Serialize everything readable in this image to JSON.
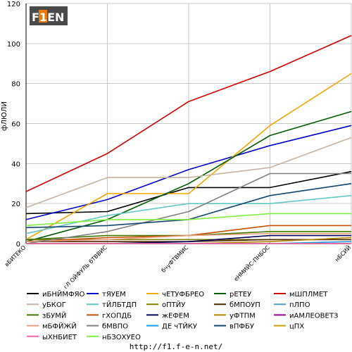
{
  "logo": {
    "text": "F1EN"
  },
  "footer": {
    "url": "http://f1.f-e-n.net/"
  },
  "chart_data": {
    "type": "line",
    "ylabel": "фЛЮЛИ",
    "xlabel": "",
    "ylim": [
      0,
      120
    ],
    "yticks": [
      0,
      20,
      40,
      60,
      80,
      100,
      120
    ],
    "grid": true,
    "legend_position": "bottom",
    "categories": [
      "вБИТЕКО",
      "гЛ ОЙФУЛЬ бТВВИС",
      "бчуФТВМИС",
      "еНМИЙС-ПНБОС",
      "нБСИЙ"
    ],
    "series": [
      {
        "name": "иБНЙМФЯО",
        "color": "#000000",
        "values": [
          15,
          16,
          28,
          28,
          36
        ]
      },
      {
        "name": "тЯУЕМ",
        "color": "#0000c8",
        "values": [
          12,
          22,
          37,
          49,
          59
        ]
      },
      {
        "name": "чЕТУФБРЕО",
        "color": "#f5a500",
        "values": [
          2,
          25,
          25,
          59,
          85
        ]
      },
      {
        "name": "рЕТЕУ",
        "color": "#005a00",
        "values": [
          1,
          12,
          30,
          54,
          66
        ]
      },
      {
        "name": "мШПЛМЕТ",
        "color": "#d20000",
        "values": [
          26,
          45,
          71,
          86,
          104
        ]
      },
      {
        "name": "уБКОГ",
        "color": "#c8b4a0",
        "values": [
          18,
          33,
          33,
          38,
          53
        ]
      },
      {
        "name": "тЙЛБТДП",
        "color": "#64c8c8",
        "values": [
          5,
          14,
          20,
          20,
          24
        ]
      },
      {
        "name": "оПТЙУ",
        "color": "#808000",
        "values": [
          2,
          2,
          2,
          2,
          2
        ]
      },
      {
        "name": "бМПОУП",
        "color": "#502800",
        "values": [
          1,
          1,
          1,
          2,
          2
        ]
      },
      {
        "name": "пЛПО",
        "color": "#50a0c8",
        "values": [
          0,
          0,
          0,
          0,
          0
        ]
      },
      {
        "name": "зБУМЙ",
        "color": "#467800",
        "values": [
          2,
          4,
          4,
          6,
          6
        ]
      },
      {
        "name": "гХОПДБ",
        "color": "#c85000",
        "values": [
          1,
          3,
          4,
          9,
          9
        ]
      },
      {
        "name": "жЕФЕМ",
        "color": "#00005a",
        "values": [
          0,
          0,
          1,
          4,
          4
        ]
      },
      {
        "name": "уФТПМ",
        "color": "#b48200",
        "values": [
          0,
          0,
          0,
          1,
          3
        ]
      },
      {
        "name": "иАМЛЕОВЕТЗ",
        "color": "#960096",
        "values": [
          0,
          0,
          0,
          0,
          0
        ]
      },
      {
        "name": "мБФЙЖЙ",
        "color": "#e6a082",
        "values": [
          1,
          2,
          4,
          5,
          5
        ]
      },
      {
        "name": "бМВПО",
        "color": "#808080",
        "values": [
          0,
          6,
          16,
          35,
          35
        ]
      },
      {
        "name": "ДЕ чТЙКУ",
        "color": "#1e96e6",
        "values": [
          0,
          0,
          0,
          0,
          1
        ]
      },
      {
        "name": "вПФБУ",
        "color": "#14466e",
        "values": [
          8,
          9,
          12,
          24,
          30
        ]
      },
      {
        "name": "цПХ",
        "color": "#c8a000",
        "values": [
          0,
          0,
          0,
          0,
          0
        ]
      },
      {
        "name": "ыХНБИЕТ",
        "color": "#f064b4",
        "values": [
          0,
          0,
          0,
          0,
          0
        ]
      },
      {
        "name": "нБЗОХУЕО",
        "color": "#80f040",
        "values": [
          9,
          12,
          12,
          15,
          15
        ]
      }
    ]
  }
}
